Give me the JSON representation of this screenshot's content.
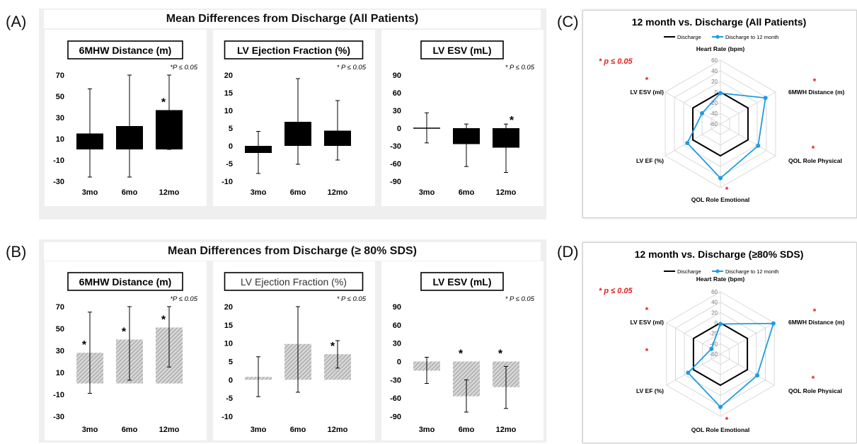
{
  "panel_letters": [
    "(A)",
    "(B)",
    "(C)",
    "(D)"
  ],
  "group_titles": {
    "A": "Mean Differences from Discharge (All Patients)",
    "B": "Mean Differences from Discharge (≥ 80% SDS)"
  },
  "chart_data": [
    {
      "type": "bar",
      "panel": "A",
      "title": "6MHW Distance (m)",
      "categories": [
        "3mo",
        "6mo",
        "12mo"
      ],
      "values": [
        15,
        22,
        37
      ],
      "error_low": [
        -26,
        -26,
        0
      ],
      "error_high": [
        57,
        70,
        70
      ],
      "significant": [
        false,
        false,
        true
      ],
      "yticks": [
        -30,
        -10,
        10,
        30,
        50,
        70
      ],
      "ylim": [
        -30,
        70
      ],
      "annotation": "*P ≤ 0.05",
      "bar_color": "#000000",
      "pattern": "solid"
    },
    {
      "type": "bar",
      "panel": "A",
      "title": "LV Ejection Fraction (%)",
      "categories": [
        "3mo",
        "6mo",
        "12mo"
      ],
      "values": [
        -2,
        6.8,
        4.3
      ],
      "error_low": [
        -7.8,
        -5.2,
        -4
      ],
      "error_high": [
        4.1,
        19,
        12.8
      ],
      "significant": [
        false,
        false,
        false
      ],
      "yticks": [
        -10,
        -5,
        0,
        5,
        10,
        15,
        20
      ],
      "ylim": [
        -10,
        20
      ],
      "annotation": "* P ≤ 0.05",
      "bar_color": "#000000",
      "pattern": "solid"
    },
    {
      "type": "bar",
      "panel": "A",
      "title": "LV ESV (mL)",
      "categories": [
        "3mo",
        "6mo",
        "12mo"
      ],
      "values": [
        0,
        -27,
        -33
      ],
      "error_low": [
        -25,
        -65,
        -75
      ],
      "error_high": [
        26,
        7,
        7
      ],
      "significant": [
        false,
        false,
        true
      ],
      "yticks": [
        -90,
        -60,
        -30,
        0,
        30,
        60,
        90
      ],
      "ylim": [
        -90,
        90
      ],
      "annotation": "* P ≤ 0.05",
      "bar_color": "#000000",
      "pattern": "solid"
    },
    {
      "type": "bar",
      "panel": "B",
      "title": "6MHW Distance (m)",
      "categories": [
        "3mo",
        "6mo",
        "12mo"
      ],
      "values": [
        28,
        40,
        51
      ],
      "error_low": [
        -9,
        3,
        15
      ],
      "error_high": [
        65,
        70,
        70
      ],
      "significant": [
        true,
        true,
        true
      ],
      "yticks": [
        -30,
        -10,
        10,
        30,
        50,
        70
      ],
      "ylim": [
        -30,
        70
      ],
      "annotation": "*P ≤ 0.05",
      "bar_color": "#a8a8a8",
      "pattern": "hatched"
    },
    {
      "type": "bar",
      "panel": "B",
      "title": "LV Ejection Fraction (%)",
      "categories": [
        "3mo",
        "6mo",
        "12mo"
      ],
      "values": [
        0.8,
        9.8,
        7
      ],
      "error_low": [
        -4.6,
        -3.4,
        3.2
      ],
      "error_high": [
        6.3,
        20,
        10.7
      ],
      "significant": [
        false,
        false,
        true
      ],
      "yticks": [
        -10,
        -5,
        0,
        5,
        10,
        15,
        20
      ],
      "ylim": [
        -10,
        20
      ],
      "annotation": "* P ≤ 0.05",
      "bar_color": "#a8a8a8",
      "pattern": "hatched"
    },
    {
      "type": "bar",
      "panel": "B",
      "title": "LV ESV (mL)",
      "categories": [
        "3mo",
        "6mo",
        "12mo"
      ],
      "values": [
        -15,
        -57,
        -42
      ],
      "error_low": [
        -36,
        -83,
        -77
      ],
      "error_high": [
        7,
        -30,
        -8
      ],
      "significant": [
        false,
        true,
        true
      ],
      "yticks": [
        -90,
        -60,
        -30,
        0,
        30,
        60,
        90
      ],
      "ylim": [
        -90,
        90
      ],
      "annotation": "* P ≤ 0.05",
      "bar_color": "#a8a8a8",
      "pattern": "hatched"
    },
    {
      "type": "radar",
      "panel": "C",
      "title": "12 month vs. Discharge (All Patients)",
      "axes": [
        "Heart Rate (bpm)",
        "6MWH Distance (m)",
        "QOL Role Physical",
        "QOL Role Emotional",
        "LV EF (%)",
        "LV ESV (ml)"
      ],
      "axis_significant": [
        false,
        true,
        true,
        true,
        false,
        true
      ],
      "ticks": [
        -60,
        -40,
        -20,
        0,
        20,
        40,
        60
      ],
      "rlim": [
        -60,
        60
      ],
      "legend": [
        "Discharge",
        "Discharge to 12 month"
      ],
      "legend_position": "top",
      "annotation": "* p ≤ 0.05",
      "series": [
        {
          "name": "Discharge",
          "values": [
            0,
            0,
            0,
            0,
            0,
            0
          ],
          "color": "#000000"
        },
        {
          "name": "Discharge to 12 month",
          "values": [
            -2,
            38,
            22,
            42,
            12,
            -20
          ],
          "color": "#1f9be0"
        }
      ]
    },
    {
      "type": "radar",
      "panel": "D",
      "title": "12 month vs. Discharge (≥80% SDS)",
      "axes": [
        "Heart Rate (bpm)",
        "6MWH Distance (m)",
        "QOL Role Physical",
        "QOL Role Emotional",
        "LV EF (%)",
        "LV ESV (ml)"
      ],
      "axis_significant": [
        false,
        true,
        true,
        true,
        true,
        true
      ],
      "ticks": [
        -60,
        -40,
        -20,
        0,
        20,
        40,
        60
      ],
      "rlim": [
        -60,
        60
      ],
      "legend": [
        "Discharge",
        "Discharge to 12 month"
      ],
      "legend_position": "top",
      "annotation": "* p ≤ 0.05",
      "series": [
        {
          "name": "Discharge",
          "values": [
            0,
            0,
            0,
            0,
            0,
            0
          ],
          "color": "#000000"
        },
        {
          "name": "Discharge to 12 month",
          "values": [
            -2,
            58,
            22,
            42,
            12,
            -40
          ],
          "color": "#1f9be0"
        }
      ]
    }
  ]
}
